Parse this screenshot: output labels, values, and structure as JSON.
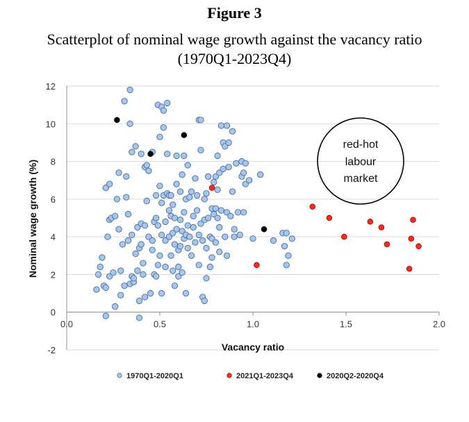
{
  "figure": {
    "label": "Figure 3",
    "title_line1": "Scatterplot of nominal wage growth against the vacancy ratio",
    "title_line2": "(1970Q1-2023Q4)"
  },
  "chart_data": {
    "type": "scatter",
    "xlabel": "Vacancy ratio",
    "ylabel": "Nominal wage growth (%)",
    "xlim": [
      0,
      2.0
    ],
    "ylim": [
      -2,
      12
    ],
    "x_ticks": [
      "0.0",
      "0.5",
      "1.0",
      "1.5",
      "2.0"
    ],
    "y_ticks": [
      "-2",
      "0",
      "2",
      "4",
      "6",
      "8",
      "10",
      "12"
    ],
    "grid": "horizontal",
    "legend_position": "bottom",
    "annotation": {
      "lines": [
        "red-hot",
        "labour",
        "market"
      ]
    },
    "series": [
      {
        "name": "1970Q1-2020Q1",
        "color": "#a9c6ea",
        "stroke": "#3f6ea5",
        "points": [
          [
            0.16,
            1.2
          ],
          [
            0.17,
            2.0
          ],
          [
            0.18,
            2.4
          ],
          [
            0.19,
            2.9
          ],
          [
            0.2,
            1.4
          ],
          [
            0.21,
            1.3
          ],
          [
            0.21,
            -0.2
          ],
          [
            0.21,
            6.6
          ],
          [
            0.22,
            4.0
          ],
          [
            0.23,
            4.9
          ],
          [
            0.23,
            6.8
          ],
          [
            0.23,
            1.9
          ],
          [
            0.24,
            5.0
          ],
          [
            0.25,
            2.1
          ],
          [
            0.26,
            0.3
          ],
          [
            0.26,
            5.1
          ],
          [
            0.27,
            6.0
          ],
          [
            0.28,
            7.4
          ],
          [
            0.28,
            4.4
          ],
          [
            0.29,
            2.2
          ],
          [
            0.29,
            0.9
          ],
          [
            0.3,
            3.6
          ],
          [
            0.31,
            11.2
          ],
          [
            0.31,
            1.4
          ],
          [
            0.32,
            6.1
          ],
          [
            0.32,
            7.2
          ],
          [
            0.33,
            5.2
          ],
          [
            0.33,
            3.8
          ],
          [
            0.34,
            11.8
          ],
          [
            0.34,
            10.0
          ],
          [
            0.34,
            1.5
          ],
          [
            0.35,
            8.5
          ],
          [
            0.35,
            4.1
          ],
          [
            0.35,
            1.9
          ],
          [
            0.36,
            1.6
          ],
          [
            0.36,
            1.8
          ],
          [
            0.37,
            8.8
          ],
          [
            0.37,
            3.1
          ],
          [
            0.38,
            2.2
          ],
          [
            0.38,
            4.5
          ],
          [
            0.39,
            -0.3
          ],
          [
            0.39,
            3.4
          ],
          [
            0.39,
            0.6
          ],
          [
            0.4,
            8.4
          ],
          [
            0.4,
            4.7
          ],
          [
            0.4,
            3.6
          ],
          [
            0.41,
            2.0
          ],
          [
            0.41,
            2.6
          ],
          [
            0.42,
            7.7
          ],
          [
            0.42,
            4.6
          ],
          [
            0.42,
            0.8
          ],
          [
            0.43,
            7.8
          ],
          [
            0.43,
            5.9
          ],
          [
            0.44,
            7.5
          ],
          [
            0.44,
            4.0
          ],
          [
            0.45,
            1.0
          ],
          [
            0.46,
            8.5
          ],
          [
            0.46,
            3.8
          ],
          [
            0.46,
            3.3
          ],
          [
            0.47,
            4.8
          ],
          [
            0.47,
            2.0
          ],
          [
            0.48,
            6.2
          ],
          [
            0.48,
            1.9
          ],
          [
            0.48,
            5.0
          ],
          [
            0.49,
            11.0
          ],
          [
            0.49,
            4.6
          ],
          [
            0.49,
            2.5
          ],
          [
            0.5,
            9.3
          ],
          [
            0.5,
            6.7
          ],
          [
            0.5,
            3.0
          ],
          [
            0.51,
            10.9
          ],
          [
            0.51,
            5.8
          ],
          [
            0.51,
            4.1
          ],
          [
            0.51,
            1.0
          ],
          [
            0.52,
            10.7
          ],
          [
            0.52,
            9.8
          ],
          [
            0.52,
            6.2
          ],
          [
            0.53,
            4.8
          ],
          [
            0.53,
            3.8
          ],
          [
            0.53,
            2.4
          ],
          [
            0.54,
            11.1
          ],
          [
            0.54,
            6.3
          ],
          [
            0.54,
            8.4
          ],
          [
            0.55,
            6.2
          ],
          [
            0.55,
            5.4
          ],
          [
            0.55,
            4.0
          ],
          [
            0.56,
            6.2
          ],
          [
            0.56,
            5.1
          ],
          [
            0.56,
            3.0
          ],
          [
            0.57,
            5.7
          ],
          [
            0.57,
            4.2
          ],
          [
            0.57,
            2.2
          ],
          [
            0.58,
            5.0
          ],
          [
            0.58,
            3.6
          ],
          [
            0.58,
            1.4
          ],
          [
            0.59,
            8.3
          ],
          [
            0.59,
            6.8
          ],
          [
            0.59,
            4.4
          ],
          [
            0.6,
            3.3
          ],
          [
            0.6,
            2.4
          ],
          [
            0.6,
            1.9
          ],
          [
            0.61,
            6.4
          ],
          [
            0.61,
            4.9
          ],
          [
            0.61,
            3.5
          ],
          [
            0.62,
            7.3
          ],
          [
            0.62,
            4.3
          ],
          [
            0.62,
            2.1
          ],
          [
            0.63,
            8.3
          ],
          [
            0.63,
            5.3
          ],
          [
            0.63,
            3.9
          ],
          [
            0.64,
            6.0
          ],
          [
            0.64,
            4.1
          ],
          [
            0.64,
            1.0
          ],
          [
            0.65,
            7.8
          ],
          [
            0.65,
            4.6
          ],
          [
            0.65,
            3.4
          ],
          [
            0.66,
            6.1
          ],
          [
            0.66,
            4.0
          ],
          [
            0.67,
            6.4
          ],
          [
            0.67,
            3.0
          ],
          [
            0.68,
            5.1
          ],
          [
            0.68,
            4.5
          ],
          [
            0.69,
            7.1
          ],
          [
            0.69,
            3.7
          ],
          [
            0.7,
            6.2
          ],
          [
            0.7,
            5.4
          ],
          [
            0.71,
            10.2
          ],
          [
            0.71,
            4.1
          ],
          [
            0.71,
            2.5
          ],
          [
            0.72,
            8.6
          ],
          [
            0.72,
            10.2
          ],
          [
            0.72,
            4.7
          ],
          [
            0.73,
            3.8
          ],
          [
            0.73,
            0.8
          ],
          [
            0.74,
            6.0
          ],
          [
            0.74,
            4.9
          ],
          [
            0.74,
            0.6
          ],
          [
            0.75,
            6.3
          ],
          [
            0.75,
            3.4
          ],
          [
            0.75,
            1.8
          ],
          [
            0.76,
            7.2
          ],
          [
            0.76,
            5.0
          ],
          [
            0.77,
            4.0
          ],
          [
            0.77,
            2.4
          ],
          [
            0.78,
            5.5
          ],
          [
            0.78,
            3.9
          ],
          [
            0.78,
            2.9
          ],
          [
            0.79,
            6.9
          ],
          [
            0.79,
            5.2
          ],
          [
            0.8,
            7.2
          ],
          [
            0.8,
            5.5
          ],
          [
            0.8,
            3.7
          ],
          [
            0.81,
            8.3
          ],
          [
            0.81,
            6.5
          ],
          [
            0.81,
            5.0
          ],
          [
            0.82,
            7.4
          ],
          [
            0.82,
            4.5
          ],
          [
            0.82,
            3.2
          ],
          [
            0.83,
            9.9
          ],
          [
            0.83,
            5.4
          ],
          [
            0.84,
            9.0
          ],
          [
            0.84,
            7.6
          ],
          [
            0.85,
            8.8
          ],
          [
            0.85,
            4.0
          ],
          [
            0.86,
            9.9
          ],
          [
            0.86,
            5.3
          ],
          [
            0.86,
            3.0
          ],
          [
            0.87,
            9.0
          ],
          [
            0.87,
            7.7
          ],
          [
            0.88,
            5.1
          ],
          [
            0.89,
            9.6
          ],
          [
            0.89,
            6.4
          ],
          [
            0.9,
            4.4
          ],
          [
            0.9,
            4.0
          ],
          [
            0.91,
            7.9
          ],
          [
            0.92,
            5.3
          ],
          [
            0.93,
            4.1
          ],
          [
            0.94,
            8.0
          ],
          [
            0.94,
            7.2
          ],
          [
            0.95,
            7.4
          ],
          [
            0.95,
            5.3
          ],
          [
            0.96,
            7.9
          ],
          [
            0.96,
            6.8
          ],
          [
            0.98,
            7.0
          ],
          [
            1.0,
            3.9
          ],
          [
            1.04,
            7.3
          ],
          [
            1.11,
            3.8
          ],
          [
            1.16,
            4.2
          ],
          [
            1.17,
            3.5
          ],
          [
            1.18,
            4.2
          ],
          [
            1.18,
            2.5
          ],
          [
            1.19,
            3.0
          ],
          [
            1.21,
            3.9
          ]
        ]
      },
      {
        "name": "2021Q1-2023Q4",
        "color": "#ff2a1a",
        "stroke": "#b30000",
        "points": [
          [
            0.78,
            6.6
          ],
          [
            1.02,
            2.5
          ],
          [
            1.32,
            5.6
          ],
          [
            1.41,
            5.0
          ],
          [
            1.49,
            4.0
          ],
          [
            1.63,
            4.8
          ],
          [
            1.69,
            4.5
          ],
          [
            1.72,
            3.6
          ],
          [
            1.84,
            2.3
          ],
          [
            1.85,
            3.9
          ],
          [
            1.86,
            4.9
          ],
          [
            1.89,
            3.5
          ]
        ]
      },
      {
        "name": "2020Q2-2020Q4",
        "color": "#000000",
        "stroke": "#000000",
        "points": [
          [
            0.27,
            10.2
          ],
          [
            0.45,
            8.4
          ],
          [
            0.63,
            9.4
          ],
          [
            1.06,
            4.4
          ]
        ]
      }
    ]
  }
}
